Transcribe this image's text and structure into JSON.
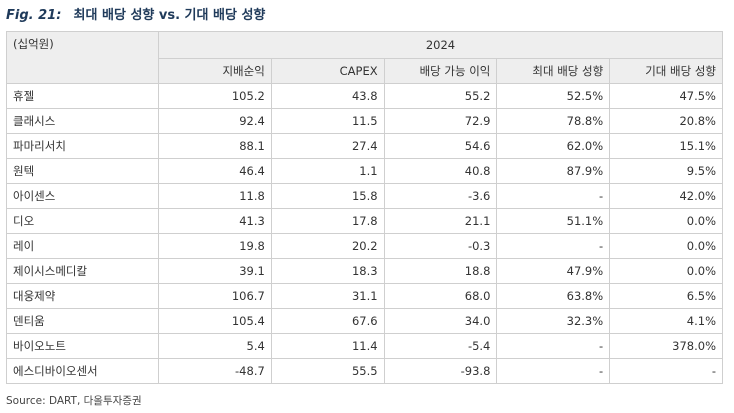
{
  "figure": {
    "number": "Fig. 21:",
    "title": "최대 배당 성향 vs. 기대 배당 성향"
  },
  "table": {
    "unit": "(십억원)",
    "year": "2024",
    "columns": [
      "지배순익",
      "CAPEX",
      "배당 가능 이익",
      "최대 배당 성향",
      "기대 배당 성향"
    ],
    "rows": [
      {
        "name": "휴젤",
        "values": [
          "105.2",
          "43.8",
          "55.2",
          "52.5%",
          "47.5%"
        ]
      },
      {
        "name": "클래시스",
        "values": [
          "92.4",
          "11.5",
          "72.9",
          "78.8%",
          "20.8%"
        ]
      },
      {
        "name": "파마리서치",
        "values": [
          "88.1",
          "27.4",
          "54.6",
          "62.0%",
          "15.1%"
        ]
      },
      {
        "name": "원텍",
        "values": [
          "46.4",
          "1.1",
          "40.8",
          "87.9%",
          "9.5%"
        ]
      },
      {
        "name": "아이센스",
        "values": [
          "11.8",
          "15.8",
          "-3.6",
          "-",
          "42.0%"
        ]
      },
      {
        "name": "디오",
        "values": [
          "41.3",
          "17.8",
          "21.1",
          "51.1%",
          "0.0%"
        ]
      },
      {
        "name": "레이",
        "values": [
          "19.8",
          "20.2",
          "-0.3",
          "-",
          "0.0%"
        ]
      },
      {
        "name": "제이시스메디칼",
        "values": [
          "39.1",
          "18.3",
          "18.8",
          "47.9%",
          "0.0%"
        ]
      },
      {
        "name": "대웅제약",
        "values": [
          "106.7",
          "31.1",
          "68.0",
          "63.8%",
          "6.5%"
        ]
      },
      {
        "name": "덴티움",
        "values": [
          "105.4",
          "67.6",
          "34.0",
          "32.3%",
          "4.1%"
        ]
      },
      {
        "name": "바이오노트",
        "values": [
          "5.4",
          "11.4",
          "-5.4",
          "-",
          "378.0%"
        ]
      },
      {
        "name": "에스디바이오센서",
        "values": [
          "-48.7",
          "55.5",
          "-93.8",
          "-",
          "-"
        ]
      }
    ]
  },
  "source": "Source: DART, 다올투자증권"
}
